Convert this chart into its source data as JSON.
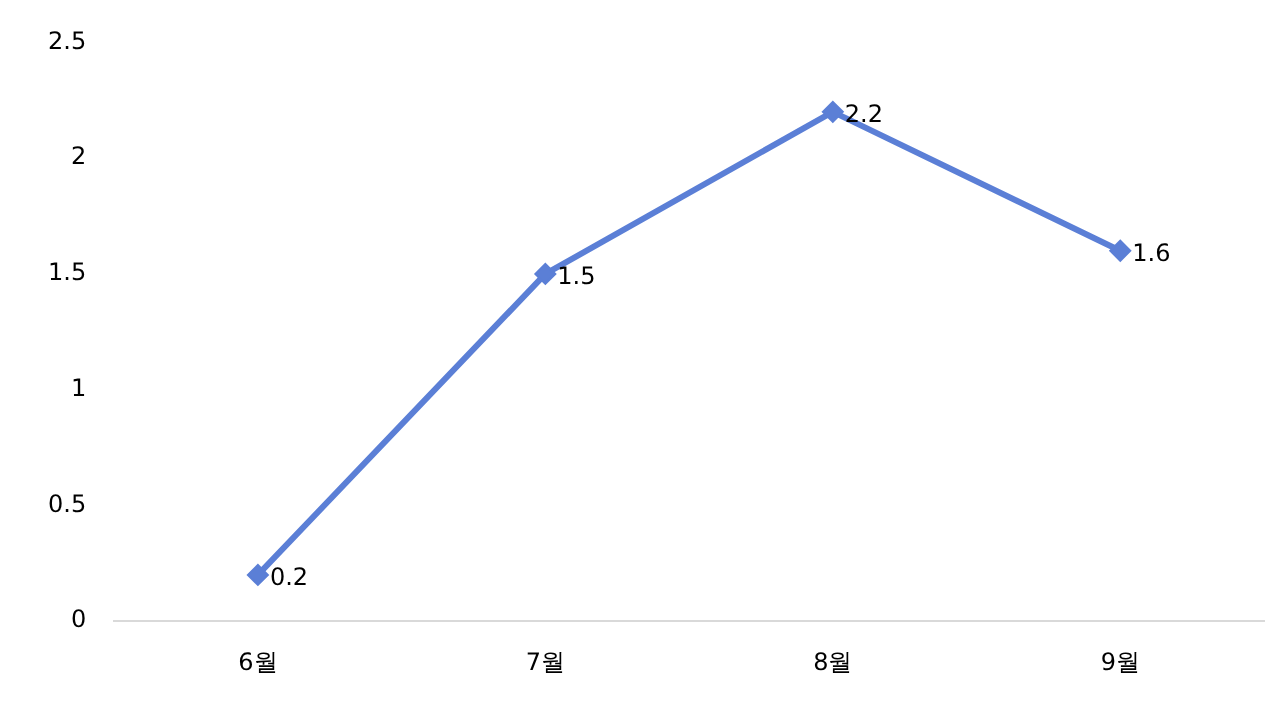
{
  "chart_data": {
    "type": "line",
    "categories": [
      "6월",
      "7월",
      "8월",
      "9월"
    ],
    "series": [
      {
        "color": "#5b7fd6",
        "values": [
          0.2,
          1.5,
          2.2,
          1.6
        ]
      }
    ],
    "ylim": [
      0,
      2.5
    ],
    "yticks": [
      0,
      0.5,
      1,
      1.5,
      2,
      2.5
    ],
    "grid": false,
    "legend": false,
    "marker": "diamond",
    "line_style": "solid",
    "data_labels": true
  }
}
